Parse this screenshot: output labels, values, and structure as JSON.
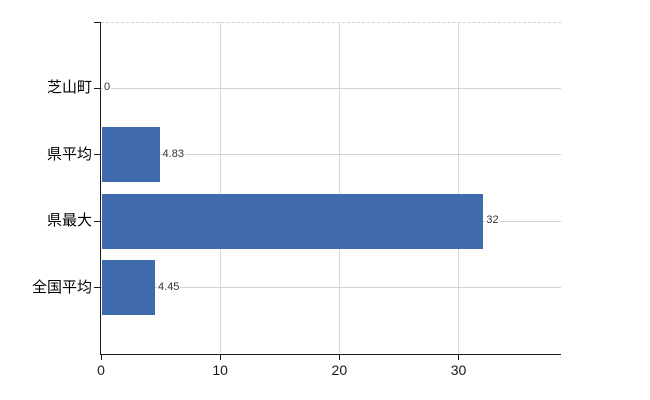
{
  "chart_data": {
    "type": "bar",
    "orientation": "horizontal",
    "title": "",
    "xlabel": "",
    "ylabel": "",
    "categories": [
      "芝山町",
      "県平均",
      "県最大",
      "全国平均"
    ],
    "values": [
      0,
      4.83,
      32,
      4.45
    ],
    "value_labels": [
      "0",
      "4.83",
      "32",
      "4.45"
    ],
    "x_ticks": [
      0,
      10,
      20,
      30
    ],
    "x_tick_labels": [
      "0",
      "10",
      "20",
      "30"
    ],
    "xlim": [
      0,
      38.6
    ],
    "grid": "horizontal solid + vertical light, dashed top border",
    "legend_position": "none",
    "colors": {
      "bar": "#3f6aab",
      "h_gridline": "#ccd5cb",
      "v_gridline": "#d8d9da",
      "top_border": "#d2d2d2",
      "axis": "#1a1a1a",
      "category_label": "#000000",
      "value_label": "#333333",
      "tick_label": "#1a1a1a",
      "background": "#ffffff"
    }
  }
}
